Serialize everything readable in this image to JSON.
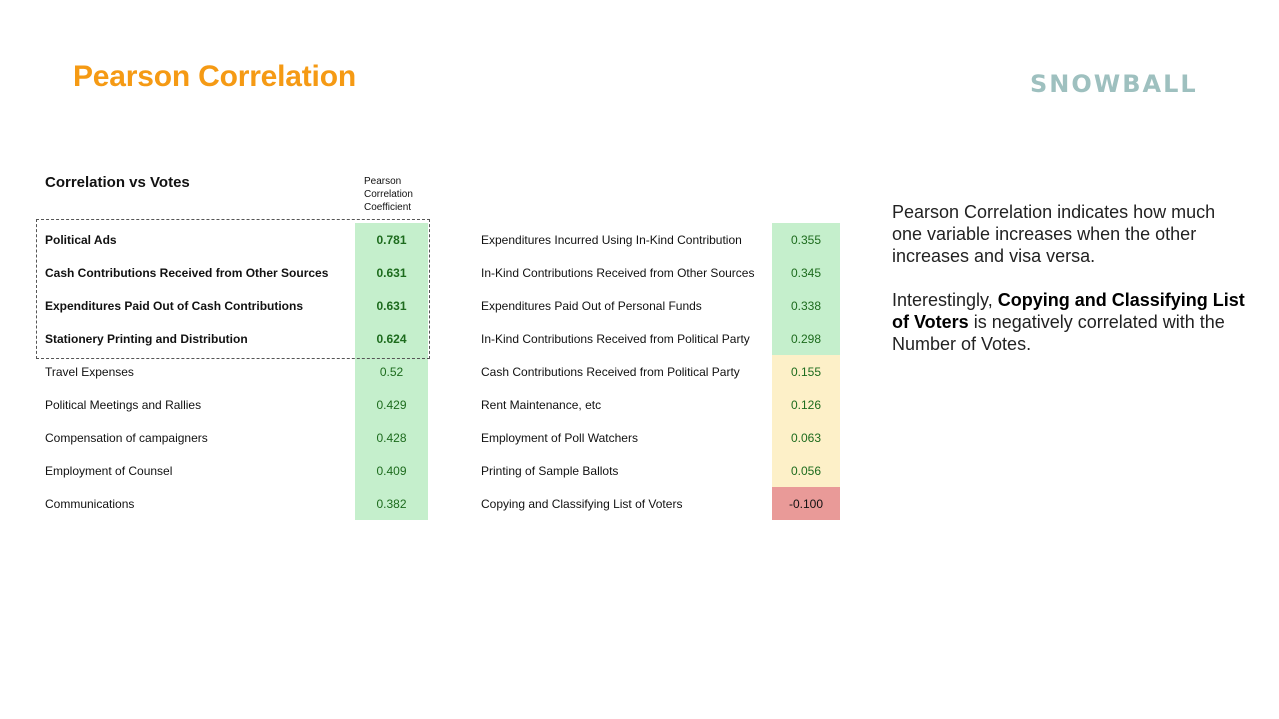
{
  "header": {
    "title": "Pearson Correlation",
    "logo_text": "SNOWBALL"
  },
  "section": {
    "title": "Correlation vs Votes",
    "column_header": [
      "Pearson",
      "Correlation",
      "Coefficient"
    ]
  },
  "table_left": [
    {
      "label": "Political Ads",
      "value": "0.781",
      "bold": true,
      "level": "strong"
    },
    {
      "label": "Cash Contributions Received from Other Sources",
      "value": "0.631",
      "bold": true,
      "level": "strong"
    },
    {
      "label": "Expenditures Paid Out of Cash Contributions",
      "value": "0.631",
      "bold": true,
      "level": "strong"
    },
    {
      "label": "Stationery Printing and Distribution",
      "value": "0.624",
      "bold": true,
      "level": "strong"
    },
    {
      "label": "Travel Expenses",
      "value": "0.52",
      "bold": false,
      "level": "strong"
    },
    {
      "label": "Political Meetings and Rallies",
      "value": "0.429",
      "bold": false,
      "level": "strong"
    },
    {
      "label": "Compensation of campaigners",
      "value": "0.428",
      "bold": false,
      "level": "strong"
    },
    {
      "label": "Employment of Counsel",
      "value": "0.409",
      "bold": false,
      "level": "strong"
    },
    {
      "label": "Communications",
      "value": "0.382",
      "bold": false,
      "level": "strong"
    }
  ],
  "table_right": [
    {
      "label": "Expenditures Incurred Using In-Kind Contribution",
      "value": "0.355",
      "level": "strong"
    },
    {
      "label": "In-Kind Contributions Received from Other Sources",
      "value": "0.345",
      "level": "strong"
    },
    {
      "label": "Expenditures Paid Out of Personal Funds",
      "value": "0.338",
      "level": "strong"
    },
    {
      "label": "In-Kind Contributions Received from Political Party",
      "value": "0.298",
      "level": "strong"
    },
    {
      "label": "Cash Contributions Received from Political Party",
      "value": "0.155",
      "level": "weak"
    },
    {
      "label": "Rent Maintenance, etc",
      "value": "0.126",
      "level": "weak"
    },
    {
      "label": "Employment of Poll Watchers",
      "value": "0.063",
      "level": "weak"
    },
    {
      "label": "Printing of Sample Ballots",
      "value": "0.056",
      "level": "weak"
    },
    {
      "label": "Copying and Classifying List of Voters",
      "value": "-0.100",
      "level": "neg"
    }
  ],
  "description": {
    "p1": "Pearson Correlation indicates how much one variable increases when the other increases and visa versa.",
    "p2_prefix": "Interestingly, ",
    "p2_bold": "Copying and Classifying List of Voters",
    "p2_suffix": " is negatively correlated with the Number of Votes."
  },
  "colors": {
    "title": "#f59a14",
    "logo": "#9ec0bf",
    "strong_bg": "#c5efcc",
    "weak_bg": "#fdf0c8",
    "negative_bg": "#e99a98",
    "value_text": "#1d6b1d"
  }
}
